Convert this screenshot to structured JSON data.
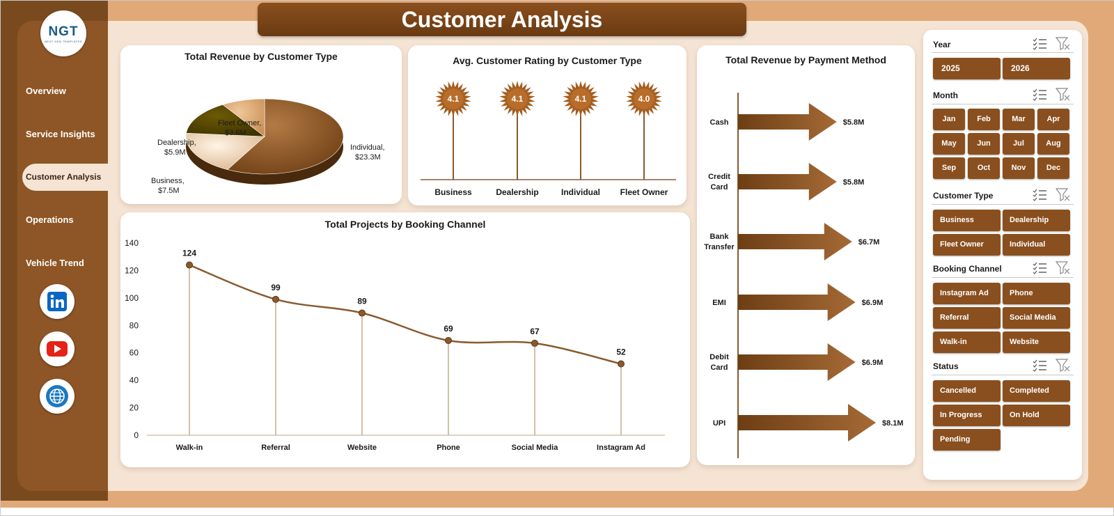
{
  "title": "Customer Analysis",
  "logo": {
    "text": "NGT",
    "subtext": "NEXT GEN TEMPLATES"
  },
  "nav": {
    "items": [
      {
        "label": "Overview"
      },
      {
        "label": "Service Insights"
      },
      {
        "label": "Customer Analysis",
        "active": true
      },
      {
        "label": "Operations"
      },
      {
        "label": "Vehicle Trend"
      }
    ]
  },
  "social": [
    "linkedin-icon",
    "youtube-icon",
    "website-globe-icon"
  ],
  "charts": {
    "pie": {
      "title": "Total Revenue by Customer Type",
      "slices": [
        {
          "name": "Individual",
          "value": 23.3,
          "label": "Individual,",
          "value_label": "$23.3M"
        },
        {
          "name": "Business",
          "value": 7.5,
          "label": "Business,",
          "value_label": "$7.5M"
        },
        {
          "name": "Dealership",
          "value": 5.9,
          "label": "Dealership,",
          "value_label": "$5.9M"
        },
        {
          "name": "Fleet Owner",
          "value": 3.6,
          "label": "Fleet Owner,",
          "value_label": "$3.6M"
        }
      ]
    },
    "rating": {
      "title": "Avg. Customer Rating by Customer Type",
      "categories": [
        "Business",
        "Dealership",
        "Individual",
        "Fleet Owner"
      ],
      "values": [
        "4.1",
        "4.1",
        "4.1",
        "4.0"
      ]
    },
    "payment": {
      "title": "Total Revenue by Payment Method",
      "items": [
        {
          "line1": "Cash",
          "line2": "",
          "value": 5.8,
          "label": "$5.8M"
        },
        {
          "line1": "Credit",
          "line2": "Card",
          "value": 5.8,
          "label": "$5.8M"
        },
        {
          "line1": "Bank",
          "line2": "Transfer",
          "value": 6.7,
          "label": "$6.7M"
        },
        {
          "line1": "EMI",
          "line2": "",
          "value": 6.9,
          "label": "$6.9M"
        },
        {
          "line1": "Debit",
          "line2": "Card",
          "value": 6.9,
          "label": "$6.9M"
        },
        {
          "line1": "UPI",
          "line2": "",
          "value": 8.1,
          "label": "$8.1M"
        }
      ]
    },
    "line": {
      "title": "Total Projects by Booking Channel",
      "categories": [
        "Walk-in",
        "Referral",
        "Website",
        "Phone",
        "Social Media",
        "Instagram Ad"
      ],
      "values": [
        124,
        99,
        89,
        69,
        67,
        52
      ],
      "ylim": [
        0,
        140
      ],
      "yticks": [
        "0",
        "20",
        "40",
        "60",
        "80",
        "100",
        "120",
        "140"
      ]
    }
  },
  "chart_data": [
    {
      "type": "pie",
      "title": "Total Revenue by Customer Type",
      "categories": [
        "Individual",
        "Business",
        "Dealership",
        "Fleet Owner"
      ],
      "values": [
        23.3,
        7.5,
        5.9,
        3.6
      ]
    },
    {
      "type": "scatter",
      "title": "Avg. Customer Rating by Customer Type",
      "categories": [
        "Business",
        "Dealership",
        "Individual",
        "Fleet Owner"
      ],
      "values": [
        4.1,
        4.1,
        4.1,
        4.0
      ]
    },
    {
      "type": "bar",
      "title": "Total Revenue by Payment Method",
      "categories": [
        "Cash",
        "Credit Card",
        "Bank Transfer",
        "EMI",
        "Debit Card",
        "UPI"
      ],
      "values": [
        5.8,
        5.8,
        6.7,
        6.9,
        6.9,
        8.1
      ]
    },
    {
      "type": "line",
      "title": "Total Projects by Booking Channel",
      "categories": [
        "Walk-in",
        "Referral",
        "Website",
        "Phone",
        "Social Media",
        "Instagram Ad"
      ],
      "values": [
        124,
        99,
        89,
        69,
        67,
        52
      ],
      "ylim": [
        0,
        140
      ]
    }
  ],
  "filters": {
    "year": {
      "label": "Year",
      "options": [
        "2025",
        "2026"
      ]
    },
    "month": {
      "label": "Month",
      "options": [
        "Jan",
        "Feb",
        "Mar",
        "Apr",
        "May",
        "Jun",
        "Jul",
        "Aug",
        "Sep",
        "Oct",
        "Nov",
        "Dec"
      ]
    },
    "customer_type": {
      "label": "Customer Type",
      "options": [
        "Business",
        "Dealership",
        "Fleet Owner",
        "Individual"
      ]
    },
    "booking_channel": {
      "label": "Booking Channel",
      "options": [
        "Instagram Ad",
        "Phone",
        "Referral",
        "Social Media",
        "Walk-in",
        "Website"
      ]
    },
    "status": {
      "label": "Status",
      "options": [
        "Cancelled",
        "Completed",
        "In Progress",
        "On Hold",
        "Pending"
      ]
    }
  },
  "colors": {
    "brown_dark": "#6a3a12",
    "brown": "#8a4f1e",
    "tan": "#e2a978",
    "cream": "#f5e4d4"
  }
}
